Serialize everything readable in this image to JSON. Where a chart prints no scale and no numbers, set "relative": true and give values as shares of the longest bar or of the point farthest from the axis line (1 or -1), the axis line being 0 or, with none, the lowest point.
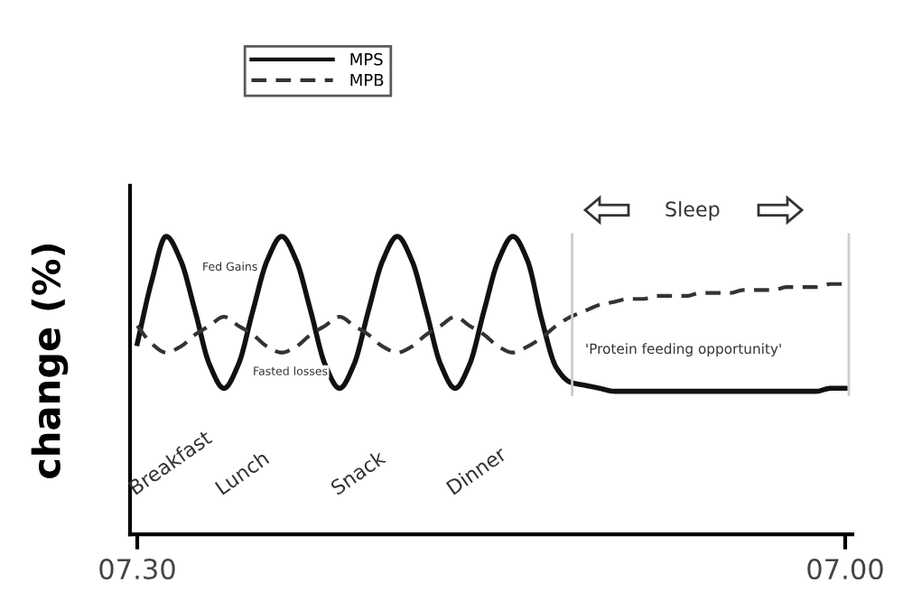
{
  "chart_data": {
    "type": "line",
    "relative": true,
    "ylabel": "change (%)",
    "categories": [
      "07.30",
      null,
      null,
      null,
      null,
      null,
      null,
      null,
      null,
      null,
      null,
      null,
      null,
      null,
      null,
      null,
      null,
      null,
      null,
      null,
      null,
      null,
      null,
      null,
      null,
      null,
      null,
      null,
      null,
      null,
      null,
      null,
      null,
      null,
      null,
      null,
      null,
      null,
      null,
      null,
      null,
      null,
      null,
      null,
      null,
      null,
      null,
      null,
      null,
      "07.00"
    ],
    "series": [
      {
        "name": "MPS",
        "color": "#111111",
        "line_style": "solid",
        "values": [
          0.64,
          0.85,
          1.0,
          0.92,
          0.75,
          0.57,
          0.49,
          0.57,
          0.75,
          0.92,
          1.0,
          0.92,
          0.75,
          0.57,
          0.49,
          0.57,
          0.75,
          0.92,
          1.0,
          0.92,
          0.75,
          0.57,
          0.49,
          0.57,
          0.75,
          0.92,
          1.0,
          0.92,
          0.72,
          0.56,
          0.51,
          0.5,
          0.49,
          0.48,
          0.48,
          0.48,
          0.48,
          0.48,
          0.48,
          0.48,
          0.48,
          0.48,
          0.48,
          0.48,
          0.48,
          0.48,
          0.48,
          0.48,
          0.49,
          0.49
        ]
      },
      {
        "name": "MPB",
        "color": "#333333",
        "line_style": "dashed",
        "values": [
          0.7,
          0.64,
          0.61,
          0.63,
          0.67,
          0.7,
          0.73,
          0.7,
          0.67,
          0.63,
          0.61,
          0.63,
          0.67,
          0.7,
          0.73,
          0.7,
          0.67,
          0.63,
          0.61,
          0.63,
          0.67,
          0.7,
          0.73,
          0.7,
          0.67,
          0.63,
          0.61,
          0.63,
          0.66,
          0.7,
          0.73,
          0.75,
          0.77,
          0.78,
          0.79,
          0.79,
          0.8,
          0.8,
          0.8,
          0.81,
          0.81,
          0.81,
          0.82,
          0.82,
          0.82,
          0.83,
          0.83,
          0.83,
          0.84,
          0.84
        ]
      }
    ],
    "annotations": [
      "Fed Gains",
      "Fasted losses",
      "'Protein feeding opportunity'",
      "Sleep",
      "Breakfast",
      "Lunch",
      "Snack",
      "Dinner"
    ],
    "legend": "top",
    "grid": false,
    "marker": "none"
  }
}
